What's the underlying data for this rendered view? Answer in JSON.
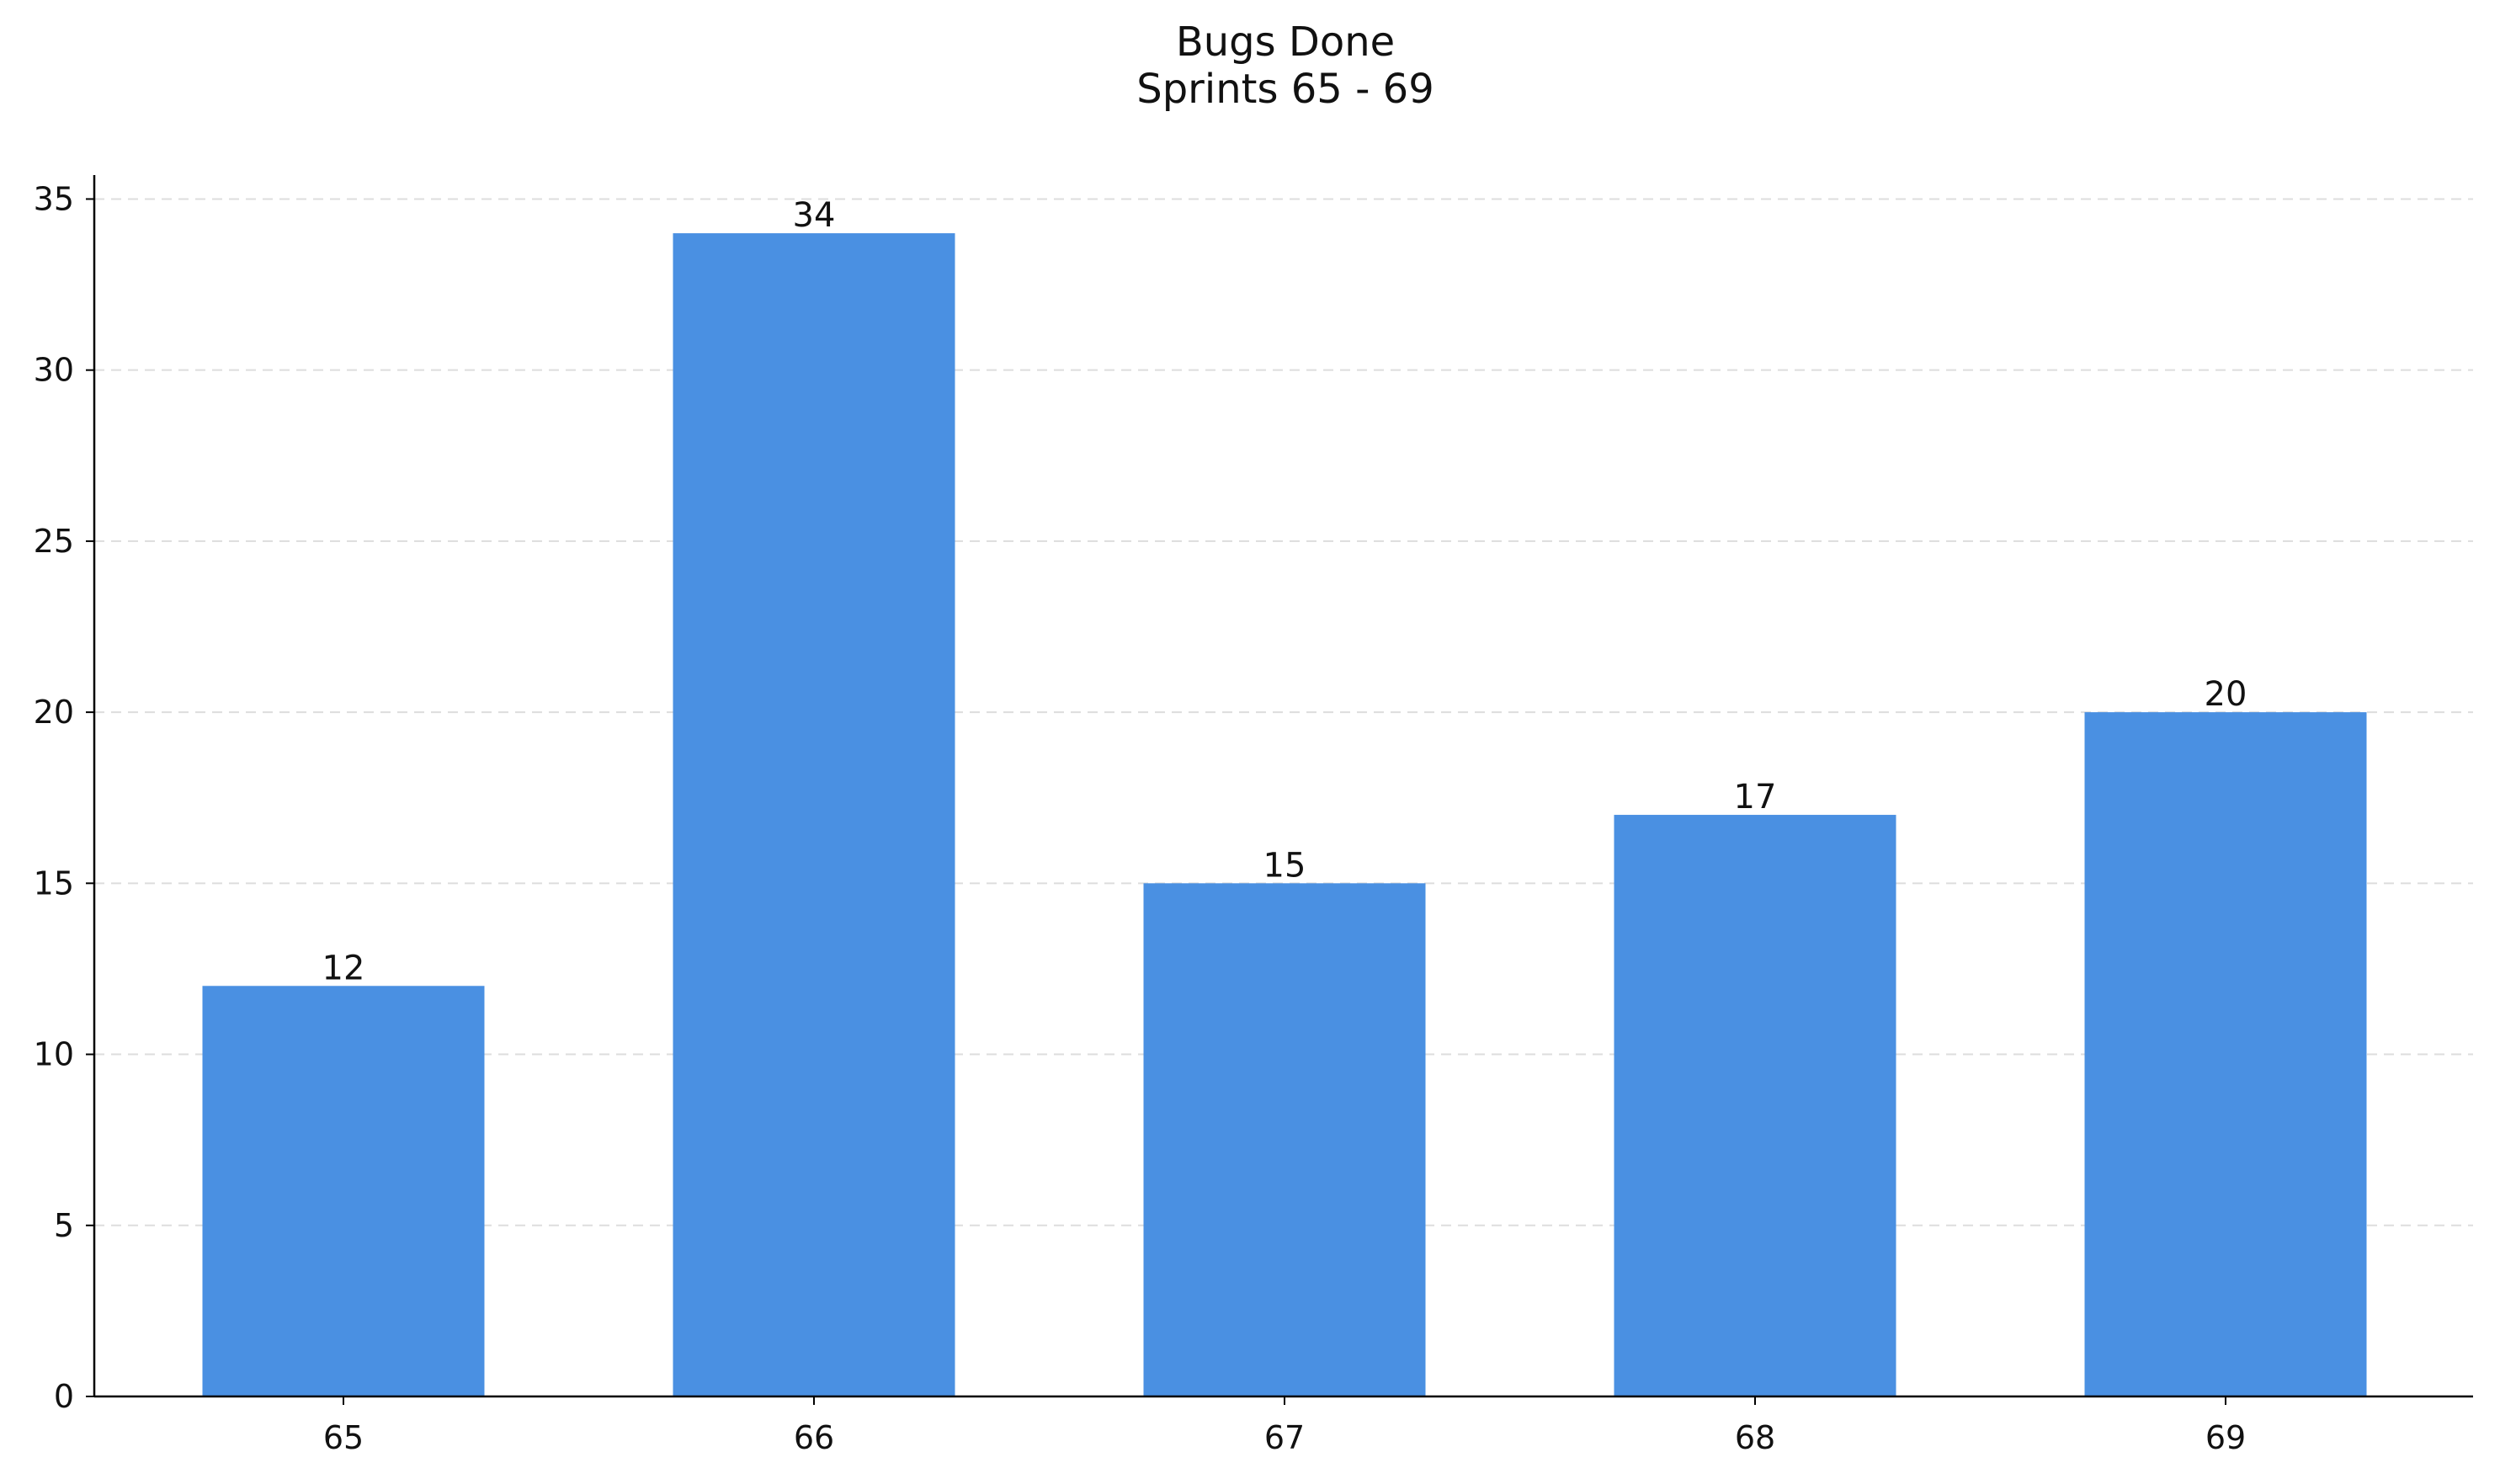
{
  "chart_data": {
    "type": "bar",
    "title": "Bugs Done",
    "subtitle": "Sprints 65 - 69",
    "categories": [
      "65",
      "66",
      "67",
      "68",
      "69"
    ],
    "values": [
      12,
      34,
      15,
      17,
      20
    ],
    "value_labels": [
      "12",
      "34",
      "15",
      "17",
      "20"
    ],
    "ylim": [
      0,
      35.7
    ],
    "yticks": [
      0,
      5,
      10,
      15,
      20,
      25,
      30,
      35
    ],
    "ytick_labels": [
      "0",
      "5",
      "10",
      "15",
      "20",
      "25",
      "30",
      "35"
    ],
    "xlabel": "",
    "ylabel": "",
    "grid": "horizontal dashed",
    "legend": "none",
    "colors": {
      "bar": "#4a90e2",
      "grid": "#dddddd",
      "axis": "#000000",
      "text": "#111111"
    }
  }
}
